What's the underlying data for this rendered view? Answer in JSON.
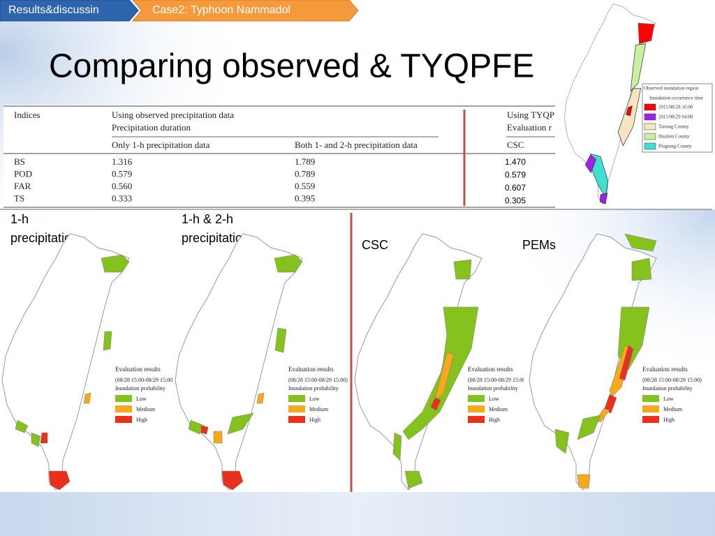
{
  "breadcrumb": [
    "Results&discussin",
    "Case2: Typhoon Nammadol"
  ],
  "title": "Comparing observed & TYQPFE",
  "table": {
    "header": {
      "indices": "Indices",
      "group1": [
        "Using observed precipitation data",
        "Precipitation duration"
      ],
      "col1": "Only 1-h precipitation data",
      "col2": "Both 1- and 2-h precipitation data",
      "group2": [
        "Using TYQP",
        "Evaluation r"
      ],
      "col3": "CSC"
    },
    "rows": [
      [
        "BS",
        "1.316",
        "1.789"
      ],
      [
        "POD",
        "0.579",
        "0.789"
      ],
      [
        "FAR",
        "0.560",
        "0.559"
      ],
      [
        "TS",
        "0.333",
        "0.395"
      ]
    ],
    "csc_values": [
      "1.470",
      "0.579",
      "0.607",
      "0.305"
    ]
  },
  "inset_legend": {
    "title": "Observed inundation region",
    "subtitle": "Inundation occurrence time",
    "items": [
      "2011/08/28 16:00",
      "2011/08/29 04:00",
      "Taitung County",
      "Hualien County",
      "Pingtung County"
    ]
  },
  "panels": [
    {
      "label": [
        "1-h",
        "precipitation"
      ]
    },
    {
      "label": [
        "1-h & 2-h",
        "precipitation"
      ]
    },
    {
      "label": [
        "CSC"
      ]
    },
    {
      "label": [
        "PEMs"
      ]
    }
  ],
  "map_legend": {
    "title": "Evaluation results",
    "period": "(08/28 15:00-08/29 15:00)",
    "subtitle": "Inundation probability",
    "levels": [
      "Low",
      "Medium",
      "High"
    ]
  }
}
